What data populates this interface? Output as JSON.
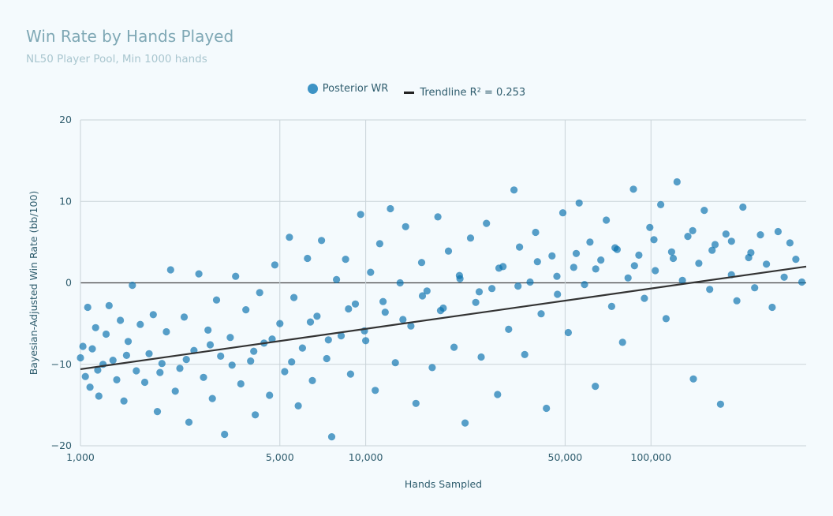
{
  "chart_data": {
    "type": "scatter",
    "title": "Win Rate by Hands Played",
    "subtitle": "NL50 Player Pool, Min 1000 hands",
    "xlabel": "Hands Sampled",
    "ylabel": "Bayesian-Adjusted Win Rate (bb/100)",
    "x_scale": "log",
    "xlim": [
      1000,
      350000
    ],
    "ylim": [
      -20,
      20
    ],
    "x_ticks": [
      {
        "value": 1000,
        "label": "1,000"
      },
      {
        "value": 5000,
        "label": "5,000"
      },
      {
        "value": 10000,
        "label": "10,000"
      },
      {
        "value": 50000,
        "label": "50,000"
      },
      {
        "value": 100000,
        "label": "100,000"
      }
    ],
    "y_ticks": [
      {
        "value": -20,
        "label": "−20"
      },
      {
        "value": -10,
        "label": "−10"
      },
      {
        "value": 0,
        "label": "0"
      },
      {
        "value": 10,
        "label": "10"
      },
      {
        "value": 20,
        "label": "20"
      }
    ],
    "grid": true,
    "zero_line": true,
    "legend_position": "top-center",
    "series": [
      {
        "name": "Posterior WR",
        "kind": "markers",
        "color": "#0a72ae",
        "points": [
          [
            1000,
            -9.2
          ],
          [
            1020,
            -7.8
          ],
          [
            1040,
            -11.5
          ],
          [
            1060,
            -3.0
          ],
          [
            1080,
            -12.8
          ],
          [
            1100,
            -8.1
          ],
          [
            1130,
            -5.5
          ],
          [
            1160,
            -13.9
          ],
          [
            1200,
            -10.0
          ],
          [
            1230,
            -6.3
          ],
          [
            1260,
            -2.8
          ],
          [
            1300,
            -9.5
          ],
          [
            1340,
            -11.9
          ],
          [
            1380,
            -4.6
          ],
          [
            1420,
            -14.5
          ],
          [
            1470,
            -7.2
          ],
          [
            1520,
            -0.3
          ],
          [
            1570,
            -10.8
          ],
          [
            1620,
            -5.1
          ],
          [
            1680,
            -12.2
          ],
          [
            1740,
            -8.7
          ],
          [
            1800,
            -3.9
          ],
          [
            1860,
            -15.8
          ],
          [
            1930,
            -9.9
          ],
          [
            2000,
            -6.0
          ],
          [
            2070,
            1.6
          ],
          [
            2150,
            -13.3
          ],
          [
            2230,
            -10.5
          ],
          [
            2310,
            -4.2
          ],
          [
            2400,
            -17.1
          ],
          [
            2500,
            -8.3
          ],
          [
            2600,
            1.1
          ],
          [
            2700,
            -11.6
          ],
          [
            2800,
            -5.8
          ],
          [
            2900,
            -14.2
          ],
          [
            3000,
            -2.1
          ],
          [
            3100,
            -9.0
          ],
          [
            3200,
            -18.6
          ],
          [
            3350,
            -6.7
          ],
          [
            3500,
            0.8
          ],
          [
            3650,
            -12.4
          ],
          [
            3800,
            -3.3
          ],
          [
            3950,
            -9.6
          ],
          [
            4100,
            -16.2
          ],
          [
            4250,
            -1.2
          ],
          [
            4400,
            -7.4
          ],
          [
            4600,
            -13.8
          ],
          [
            4800,
            2.2
          ],
          [
            5000,
            -5.0
          ],
          [
            5200,
            -10.9
          ],
          [
            5400,
            5.6
          ],
          [
            5600,
            -1.8
          ],
          [
            5800,
            -15.1
          ],
          [
            6000,
            -8.0
          ],
          [
            6250,
            3.0
          ],
          [
            6500,
            -12.0
          ],
          [
            6750,
            -4.1
          ],
          [
            7000,
            5.2
          ],
          [
            7300,
            -9.3
          ],
          [
            7600,
            -18.9
          ],
          [
            7900,
            0.4
          ],
          [
            8200,
            -6.5
          ],
          [
            8500,
            2.9
          ],
          [
            8850,
            -11.2
          ],
          [
            9200,
            -2.6
          ],
          [
            9600,
            8.4
          ],
          [
            10000,
            -7.1
          ],
          [
            10400,
            1.3
          ],
          [
            10800,
            -13.2
          ],
          [
            11200,
            4.8
          ],
          [
            11700,
            -3.6
          ],
          [
            12200,
            9.1
          ],
          [
            12700,
            -9.8
          ],
          [
            13200,
            0.0
          ],
          [
            13800,
            6.9
          ],
          [
            14400,
            -5.3
          ],
          [
            15000,
            -14.8
          ],
          [
            15700,
            2.5
          ],
          [
            16400,
            -1.0
          ],
          [
            17100,
            -10.4
          ],
          [
            17900,
            8.1
          ],
          [
            18700,
            -3.1
          ],
          [
            19500,
            3.9
          ],
          [
            20400,
            -7.9
          ],
          [
            21300,
            0.9
          ],
          [
            22300,
            -17.2
          ],
          [
            23300,
            5.5
          ],
          [
            24300,
            -2.4
          ],
          [
            25400,
            -9.1
          ],
          [
            26500,
            7.3
          ],
          [
            27700,
            -0.7
          ],
          [
            29000,
            -13.7
          ],
          [
            30300,
            2.0
          ],
          [
            31700,
            -5.7
          ],
          [
            33100,
            11.4
          ],
          [
            34600,
            4.4
          ],
          [
            36100,
            -8.8
          ],
          [
            37700,
            0.1
          ],
          [
            39400,
            6.2
          ],
          [
            41200,
            -3.8
          ],
          [
            43000,
            -15.4
          ],
          [
            45000,
            3.3
          ],
          [
            47000,
            -1.4
          ],
          [
            49100,
            8.6
          ],
          [
            51300,
            -6.1
          ],
          [
            53600,
            1.9
          ],
          [
            56000,
            9.8
          ],
          [
            58500,
            -0.2
          ],
          [
            61100,
            5.0
          ],
          [
            63800,
            -12.7
          ],
          [
            66700,
            2.8
          ],
          [
            69700,
            7.7
          ],
          [
            72800,
            -2.9
          ],
          [
            76100,
            4.1
          ],
          [
            79500,
            -7.3
          ],
          [
            83100,
            0.6
          ],
          [
            86800,
            11.5
          ],
          [
            90700,
            3.4
          ],
          [
            94800,
            -1.9
          ],
          [
            99100,
            6.8
          ],
          [
            103500,
            1.5
          ],
          [
            108200,
            9.6
          ],
          [
            113000,
            -4.4
          ],
          [
            118100,
            3.8
          ],
          [
            123400,
            12.4
          ],
          [
            128900,
            0.3
          ],
          [
            134700,
            5.7
          ],
          [
            140800,
            -11.8
          ],
          [
            147100,
            2.4
          ],
          [
            153700,
            8.9
          ],
          [
            160600,
            -0.8
          ],
          [
            167800,
            4.7
          ],
          [
            175300,
            -14.9
          ],
          [
            183200,
            6.0
          ],
          [
            191400,
            1.0
          ],
          [
            200000,
            -2.2
          ],
          [
            210000,
            9.3
          ],
          [
            220000,
            3.1
          ],
          [
            231000,
            -0.6
          ],
          [
            242000,
            5.9
          ],
          [
            254000,
            2.3
          ],
          [
            266000,
            -3.0
          ],
          [
            279000,
            6.3
          ],
          [
            293000,
            0.7
          ],
          [
            307000,
            4.9
          ],
          [
            322000,
            2.9
          ],
          [
            338000,
            0.1
          ],
          [
            1150,
            -10.7
          ],
          [
            1450,
            -8.9
          ],
          [
            1900,
            -11.0
          ],
          [
            2350,
            -9.4
          ],
          [
            2850,
            -7.6
          ],
          [
            3400,
            -10.1
          ],
          [
            4050,
            -8.4
          ],
          [
            4700,
            -6.9
          ],
          [
            5500,
            -9.7
          ],
          [
            6400,
            -4.8
          ],
          [
            7400,
            -7.0
          ],
          [
            8700,
            -3.2
          ],
          [
            9900,
            -5.9
          ],
          [
            11500,
            -2.3
          ],
          [
            13500,
            -4.5
          ],
          [
            15800,
            -1.6
          ],
          [
            18300,
            -3.4
          ],
          [
            21400,
            0.5
          ],
          [
            25000,
            -1.1
          ],
          [
            29300,
            1.8
          ],
          [
            34200,
            -0.4
          ],
          [
            40000,
            2.6
          ],
          [
            46800,
            0.8
          ],
          [
            54700,
            3.6
          ],
          [
            64000,
            1.7
          ],
          [
            74800,
            4.3
          ],
          [
            87500,
            2.1
          ],
          [
            102400,
            5.3
          ],
          [
            119700,
            3.0
          ],
          [
            140000,
            6.4
          ],
          [
            163700,
            4.0
          ],
          [
            191500,
            5.1
          ],
          [
            224000,
            3.7
          ]
        ]
      },
      {
        "name": "Trendline R² = 0.253",
        "kind": "line",
        "color": "#333333",
        "x": [
          1000,
          350000
        ],
        "y": [
          -10.6,
          2.0
        ]
      }
    ]
  }
}
